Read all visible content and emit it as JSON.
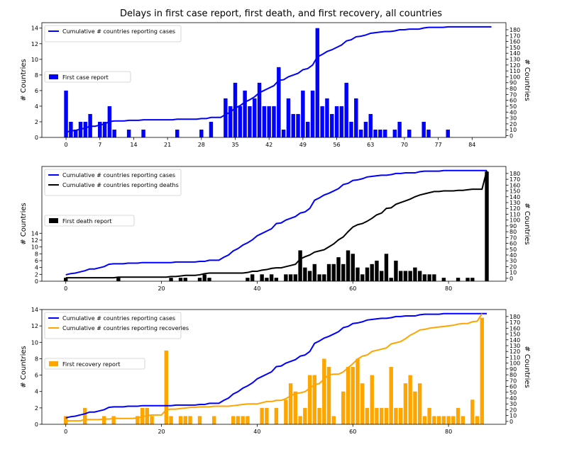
{
  "title": "Delays in first case report, first death, and first recovery, all countries",
  "chart_data": [
    {
      "type": "bar",
      "ylabel": "# Countries",
      "y2label": "# Countries",
      "xlim": [
        -5,
        91
      ],
      "ylim": [
        0,
        14.7
      ],
      "y2lim": [
        -3,
        192
      ],
      "xticks": [
        0,
        7,
        14,
        21,
        28,
        35,
        42,
        49,
        56,
        63,
        70,
        77,
        84
      ],
      "yticks": [
        0,
        2,
        4,
        6,
        8,
        10,
        12,
        14
      ],
      "y2ticks": [
        0,
        10,
        20,
        30,
        40,
        50,
        60,
        70,
        80,
        90,
        100,
        110,
        120,
        130,
        140,
        150,
        160,
        170,
        180
      ],
      "bars": {
        "name": "First case report",
        "color": "#0000ff",
        "values": [
          6,
          2,
          1,
          2,
          2,
          3,
          0,
          2,
          2,
          4,
          1,
          0,
          0,
          1,
          0,
          0,
          1,
          0,
          0,
          0,
          0,
          0,
          0,
          1,
          0,
          0,
          0,
          0,
          1,
          0,
          2,
          0,
          0,
          5,
          4,
          7,
          4,
          6,
          4,
          5,
          7,
          4,
          4,
          4,
          9,
          1,
          5,
          3,
          3,
          6,
          2,
          6,
          14,
          4,
          5,
          3,
          4,
          4,
          7,
          2,
          5,
          1,
          2,
          3,
          1,
          1,
          1,
          0,
          1,
          2,
          0,
          1,
          0,
          0,
          2,
          1,
          0,
          0,
          0,
          1
        ]
      },
      "lines": [
        {
          "name": "Cumulative # countries reporting cases",
          "color": "#0000ff",
          "values": [
            6,
            8,
            9,
            11,
            13,
            16,
            16,
            18,
            20,
            24,
            25,
            25,
            25,
            26,
            26,
            26,
            27,
            27,
            27,
            27,
            27,
            27,
            27,
            28,
            28,
            28,
            28,
            28,
            29,
            29,
            31,
            31,
            31,
            36,
            40,
            47,
            51,
            57,
            61,
            66,
            73,
            77,
            81,
            85,
            94,
            95,
            100,
            103,
            106,
            112,
            114,
            120,
            134,
            138,
            143,
            146,
            150,
            154,
            161,
            163,
            168,
            169,
            171,
            174,
            175,
            176,
            177,
            177,
            178,
            180,
            180,
            181,
            181,
            181,
            183,
            184,
            184,
            184,
            184,
            185,
            185,
            185,
            185,
            185,
            185,
            185,
            185,
            185,
            185
          ]
        }
      ],
      "legend_lines_loc": "upper left",
      "legend_bars_loc": "center left"
    },
    {
      "type": "bar",
      "ylabel": "# Countries",
      "y2label": "# Countries",
      "xlim": [
        -5,
        92
      ],
      "ylim": [
        0,
        33.5
      ],
      "y2lim": [
        -5,
        192
      ],
      "xticks": [
        0,
        20,
        40,
        60,
        80
      ],
      "yticks": [
        0,
        2,
        4,
        6,
        8,
        10,
        12,
        14
      ],
      "y2ticks": [
        0,
        10,
        20,
        30,
        40,
        50,
        60,
        70,
        80,
        90,
        100,
        110,
        120,
        130,
        140,
        150,
        160,
        170,
        180
      ],
      "bars": {
        "name": "First death report",
        "color": "#000000",
        "values": [
          1,
          0,
          0,
          0,
          0,
          0,
          0,
          0,
          0,
          0,
          0,
          1,
          0,
          0,
          0,
          0,
          0,
          0,
          0,
          0,
          0,
          0,
          1,
          0,
          1,
          1,
          0,
          0,
          1,
          2,
          1,
          0,
          0,
          0,
          0,
          0,
          0,
          0,
          1,
          2,
          0,
          2,
          1,
          2,
          1,
          0,
          2,
          2,
          2,
          9,
          4,
          3,
          5,
          2,
          2,
          5,
          5,
          7,
          5,
          9,
          8,
          4,
          2,
          4,
          5,
          6,
          3,
          8,
          1,
          6,
          3,
          3,
          3,
          4,
          3,
          2,
          2,
          2,
          0,
          1,
          0,
          0,
          1,
          0,
          1,
          1,
          0,
          0,
          32
        ]
      },
      "lines": [
        {
          "name": "Cumulative # countries reporting cases",
          "color": "#0000ff",
          "values": [
            6,
            8,
            9,
            11,
            13,
            16,
            16,
            18,
            20,
            24,
            25,
            25,
            25,
            26,
            26,
            26,
            27,
            27,
            27,
            27,
            27,
            27,
            27,
            28,
            28,
            28,
            28,
            28,
            29,
            29,
            31,
            31,
            31,
            36,
            40,
            47,
            51,
            57,
            61,
            66,
            73,
            77,
            81,
            85,
            94,
            95,
            100,
            103,
            106,
            112,
            114,
            120,
            134,
            138,
            143,
            146,
            150,
            154,
            161,
            163,
            168,
            169,
            171,
            174,
            175,
            176,
            177,
            177,
            178,
            180,
            180,
            181,
            181,
            181,
            183,
            184,
            184,
            184,
            184,
            185,
            185,
            185,
            185,
            185,
            185,
            185,
            185,
            185,
            185
          ]
        },
        {
          "name": "Cumulative # countries reporting deaths",
          "color": "#000000",
          "values": [
            1,
            1,
            1,
            1,
            1,
            1,
            1,
            1,
            1,
            1,
            1,
            2,
            2,
            2,
            2,
            2,
            2,
            2,
            2,
            2,
            2,
            2,
            3,
            3,
            4,
            5,
            5,
            5,
            6,
            8,
            9,
            9,
            9,
            9,
            9,
            9,
            9,
            9,
            10,
            12,
            12,
            14,
            15,
            17,
            18,
            18,
            20,
            22,
            24,
            33,
            37,
            40,
            45,
            47,
            49,
            54,
            59,
            66,
            71,
            80,
            88,
            92,
            94,
            98,
            103,
            109,
            112,
            120,
            121,
            127,
            130,
            133,
            136,
            140,
            143,
            145,
            147,
            149,
            149,
            150,
            150,
            150,
            151,
            151,
            152,
            153,
            153,
            153,
            185
          ]
        }
      ],
      "legend_lines_loc": "upper left",
      "legend_bars_loc": "center left"
    },
    {
      "type": "bar",
      "ylabel": "# Countries",
      "y2label": "# Countries",
      "xlim": [
        -5,
        92
      ],
      "ylim": [
        0,
        14
      ],
      "y2lim": [
        -5,
        192
      ],
      "xticks": [
        0,
        20,
        40,
        60,
        80
      ],
      "yticks": [
        0,
        2,
        4,
        6,
        8,
        10,
        12,
        14
      ],
      "y2ticks": [
        0,
        10,
        20,
        30,
        40,
        50,
        60,
        70,
        80,
        90,
        100,
        110,
        120,
        130,
        140,
        150,
        160,
        170,
        180
      ],
      "bars": {
        "name": "First recovery report",
        "color": "#ffa500",
        "values": [
          1,
          0,
          0,
          0,
          2,
          0,
          0,
          0,
          1,
          0,
          1,
          0,
          0,
          0,
          0,
          1,
          2,
          2,
          1,
          0,
          0,
          9,
          1,
          0,
          1,
          1,
          1,
          0,
          1,
          0,
          0,
          1,
          0,
          0,
          0,
          1,
          1,
          1,
          1,
          0,
          0,
          2,
          2,
          0,
          2,
          0,
          3,
          5,
          4,
          1,
          2,
          6,
          6,
          2,
          8,
          7,
          1,
          0,
          4,
          7,
          7,
          8,
          5,
          2,
          6,
          2,
          2,
          2,
          7,
          2,
          2,
          5,
          6,
          4,
          5,
          1,
          2,
          1,
          1,
          1,
          1,
          1,
          2,
          1,
          0,
          3,
          1,
          13
        ]
      },
      "lines": [
        {
          "name": "Cumulative # countries reporting cases",
          "color": "#0000ff",
          "values": [
            6,
            8,
            9,
            11,
            13,
            16,
            16,
            18,
            20,
            24,
            25,
            25,
            25,
            26,
            26,
            26,
            27,
            27,
            27,
            27,
            27,
            27,
            27,
            28,
            28,
            28,
            28,
            28,
            29,
            29,
            31,
            31,
            31,
            36,
            40,
            47,
            51,
            57,
            61,
            66,
            73,
            77,
            81,
            85,
            94,
            95,
            100,
            103,
            106,
            112,
            114,
            120,
            134,
            138,
            143,
            146,
            150,
            154,
            161,
            163,
            168,
            169,
            171,
            174,
            175,
            176,
            177,
            177,
            178,
            180,
            180,
            181,
            181,
            181,
            183,
            184,
            184,
            184,
            184,
            185,
            185,
            185,
            185,
            185,
            185,
            185,
            185,
            185,
            185
          ]
        },
        {
          "name": "Cumulative # countries reporting recoveries",
          "color": "#ffa500",
          "values": [
            1,
            1,
            1,
            1,
            3,
            3,
            3,
            3,
            4,
            4,
            5,
            5,
            5,
            5,
            5,
            6,
            8,
            10,
            11,
            11,
            11,
            20,
            21,
            21,
            22,
            23,
            24,
            24,
            25,
            25,
            25,
            26,
            26,
            26,
            26,
            27,
            28,
            29,
            30,
            30,
            30,
            32,
            34,
            34,
            36,
            36,
            39,
            44,
            48,
            49,
            51,
            57,
            63,
            65,
            73,
            80,
            81,
            81,
            85,
            92,
            99,
            107,
            112,
            114,
            120,
            122,
            124,
            126,
            133,
            135,
            137,
            142,
            148,
            152,
            157,
            158,
            160,
            161,
            162,
            163,
            164,
            165,
            167,
            168,
            168,
            171,
            172,
            185
          ]
        }
      ],
      "legend_lines_loc": "upper left",
      "legend_bars_loc": "center left"
    }
  ]
}
